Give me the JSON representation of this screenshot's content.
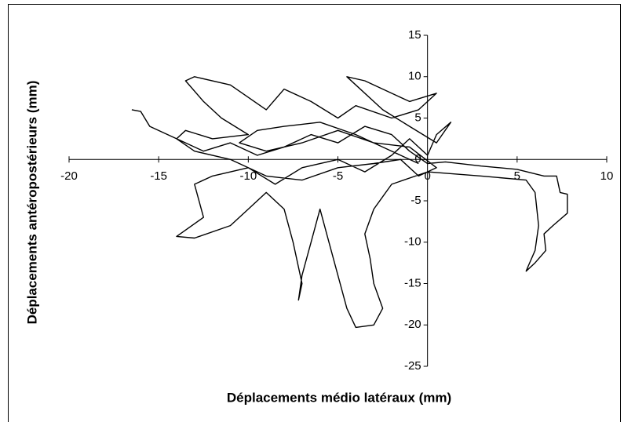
{
  "chart_data": {
    "type": "line",
    "x_label": "Déplacements médio latéraux (mm)",
    "y_label": "Déplacements antéropostérieurs (mm)",
    "color": "#000000",
    "x": [
      -16.5,
      -16,
      -15.5,
      -14,
      -12.5,
      -11,
      -9.5,
      -8,
      -6.5,
      -5,
      -3.5,
      -2,
      -1,
      0,
      1,
      3,
      5,
      6.5,
      7.2,
      7.4,
      7.8,
      7.8,
      7,
      6.5,
      6.6,
      6,
      5.5,
      5.6,
      6,
      6.2,
      6,
      5.5,
      3,
      0,
      -2,
      -3,
      -3.5,
      -3.2,
      -3,
      -2.5,
      -3,
      -4,
      -4.5,
      -5,
      -5.5,
      -6,
      -6.5,
      -7,
      -7.2,
      -7,
      -7.5,
      -8,
      -9,
      -10,
      -11,
      -13,
      -14,
      -12.5,
      -13,
      -12,
      -10,
      -8.5,
      -7,
      -5,
      -3.5,
      -2,
      -1,
      0,
      0.5,
      1.3,
      0.5,
      -1,
      -2.5,
      -4,
      -4.5,
      -3.5,
      -2,
      -1,
      0.5,
      -0.5,
      -2,
      -4,
      -5,
      -6.5,
      -8,
      -9,
      -10,
      -11,
      -13,
      -13.5,
      -12.5,
      -11.5,
      -10,
      -12,
      -13.5,
      -14,
      -13,
      -11,
      -9,
      -7,
      -5,
      -3,
      -1.5,
      -0.5,
      0.5,
      -1,
      -3,
      -5,
      -7,
      -9,
      -10.5,
      -9.5,
      -8,
      -6,
      -4,
      -2,
      -0.5
    ],
    "values": [
      6,
      5.8,
      4,
      2.5,
      1,
      2,
      0.5,
      1.5,
      3,
      2,
      4,
      3,
      1,
      -0.5,
      -0.3,
      -0.8,
      -1.2,
      -2,
      -2,
      -4,
      -4.2,
      -6.5,
      -8,
      -9,
      -11,
      -12.5,
      -13.5,
      -13,
      -11,
      -8,
      -4,
      -2.5,
      -2,
      -1.5,
      -3,
      -6,
      -9,
      -12,
      -15,
      -18,
      -20,
      -20.3,
      -18,
      -14,
      -10,
      -6,
      -10,
      -14,
      -17,
      -15,
      -10,
      -6,
      -4,
      -6,
      -8,
      -9.5,
      -9.3,
      -7,
      -3,
      -2,
      -1,
      -3,
      -1,
      0,
      -1.5,
      0.5,
      2.5,
      0.5,
      3,
      4.5,
      2,
      4,
      6,
      9,
      10,
      9.5,
      8,
      7,
      8,
      6,
      5,
      6.5,
      5,
      7,
      8.5,
      6,
      7.5,
      9,
      10,
      9.5,
      7,
      5,
      3,
      2.5,
      3.5,
      2.5,
      1,
      0,
      -2,
      -2.5,
      -1,
      -0.5,
      0,
      -2,
      -1,
      1.5,
      2,
      3.5,
      2,
      1,
      2,
      3.5,
      4,
      4.5,
      3,
      1,
      -0.5
    ],
    "xlim": [
      -20,
      10
    ],
    "xticks": [
      -20,
      -15,
      -10,
      -5,
      0,
      5,
      10
    ],
    "ylim": [
      -25,
      15
    ],
    "yticks": [
      -25,
      -20,
      -15,
      -10,
      -5,
      0,
      5,
      10,
      15
    ]
  }
}
